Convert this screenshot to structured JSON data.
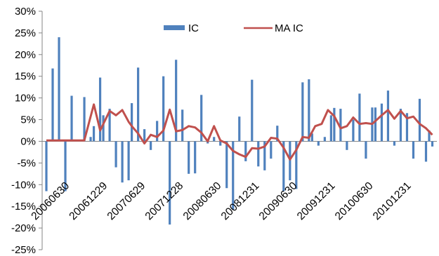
{
  "chart_data": {
    "type": "bar",
    "title": "",
    "xlabel": "",
    "ylabel": "",
    "ylim": [
      -0.25,
      0.3
    ],
    "y_ticks": [
      -0.25,
      -0.2,
      -0.15,
      -0.1,
      -0.05,
      0.0,
      0.05,
      0.1,
      0.15,
      0.2,
      0.25,
      0.3
    ],
    "y_tick_labels": [
      "-25%",
      "-20%",
      "-15%",
      "-10%",
      "-5%",
      "0%",
      "5%",
      "10%",
      "15%",
      "20%",
      "25%",
      "30%"
    ],
    "x_tick_labels": [
      {
        "label": "20060630",
        "index": 2
      },
      {
        "label": "20061229",
        "index": 14
      },
      {
        "label": "20070629",
        "index": 26
      },
      {
        "label": "20071228",
        "index": 38
      },
      {
        "label": "20080630",
        "index": 50
      },
      {
        "label": "20081231",
        "index": 62
      },
      {
        "label": "20090630",
        "index": 74
      },
      {
        "label": "20091231",
        "index": 86
      },
      {
        "label": "20100630",
        "index": 98
      },
      {
        "label": "20101231",
        "index": 110
      }
    ],
    "legend_position": "top",
    "series": [
      {
        "name": "IC",
        "kind": "bar",
        "color": "#4F81BD",
        "values": [
          -0.115,
          0.168,
          0.24,
          -0.115,
          0.105,
          0.0,
          0.102,
          0.01,
          0.035,
          0.147,
          0.06,
          0.075,
          -0.06,
          -0.095,
          -0.09,
          0.088,
          0.17,
          0.028,
          -0.02,
          0.047,
          0.15,
          -0.192,
          0.188,
          0.073,
          -0.075,
          -0.074,
          0.107,
          -0.005,
          0.01,
          -0.01,
          -0.108,
          -0.158,
          0.057,
          -0.046,
          0.142,
          -0.058,
          -0.067,
          -0.04,
          0.036,
          -0.115,
          -0.09,
          -0.11,
          0.136,
          0.143,
          0.018,
          -0.01,
          0.01,
          0.06,
          0.077,
          0.075,
          -0.02,
          0.05,
          0.11,
          -0.04,
          0.078,
          0.078,
          0.087,
          0.117,
          -0.01,
          0.075,
          0.065,
          -0.04,
          0.098,
          -0.047,
          0.025,
          -0.012
        ],
        "x_index": [
          0,
          2,
          4,
          6,
          8,
          10,
          12,
          14,
          15,
          17,
          18,
          20,
          22,
          24,
          26,
          27,
          29,
          31,
          33,
          35,
          37,
          39,
          41,
          43,
          45,
          47,
          49,
          51,
          53,
          55,
          57,
          59,
          61,
          63,
          65,
          67,
          69,
          71,
          73,
          75,
          77,
          79,
          81,
          83,
          84,
          86,
          88,
          90,
          91,
          93,
          95,
          97,
          99,
          101,
          103,
          104,
          106,
          108,
          110,
          112,
          114,
          116,
          118,
          120,
          121,
          122
        ]
      },
      {
        "name": "MA IC",
        "kind": "line",
        "color": "#C0504D",
        "x_index": [
          0,
          4,
          8,
          12,
          15,
          17,
          20,
          22,
          24,
          26,
          27,
          29,
          31,
          33,
          35,
          37,
          39,
          41,
          43,
          45,
          47,
          49,
          51,
          53,
          55,
          57,
          59,
          61,
          63,
          65,
          67,
          69,
          71,
          73,
          75,
          77,
          79,
          81,
          83,
          85,
          87,
          89,
          91,
          93,
          95,
          97,
          99,
          101,
          103,
          106,
          108,
          110,
          112,
          114,
          116,
          118,
          120,
          122
        ],
        "values": [
          0.002,
          0.002,
          0.002,
          0.002,
          0.085,
          0.025,
          0.07,
          0.06,
          0.072,
          0.045,
          0.035,
          0.018,
          -0.005,
          0.015,
          0.01,
          0.025,
          0.073,
          0.023,
          0.026,
          0.035,
          0.032,
          0.02,
          0.0,
          0.035,
          0.002,
          -0.005,
          -0.022,
          -0.03,
          -0.036,
          -0.016,
          -0.017,
          -0.012,
          0.008,
          0.006,
          -0.015,
          -0.042,
          -0.02,
          0.01,
          0.008,
          0.035,
          0.04,
          0.072,
          0.058,
          0.03,
          0.035,
          0.055,
          0.04,
          0.042,
          0.04,
          0.06,
          0.072,
          0.052,
          0.07,
          0.053,
          0.057,
          0.04,
          0.03,
          0.015
        ]
      }
    ],
    "x_domain": [
      0,
      123
    ]
  }
}
